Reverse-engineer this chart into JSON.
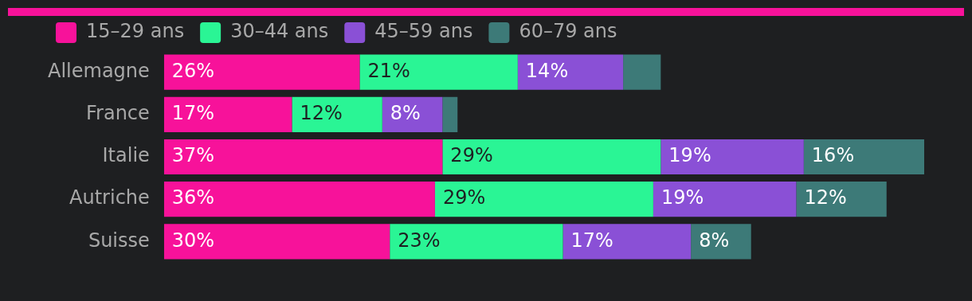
{
  "chart_data": {
    "type": "bar",
    "orientation": "horizontal",
    "stacked": true,
    "legend": "top left",
    "categories": [
      "Allemagne",
      "France",
      "Italie",
      "Autriche",
      "Suisse"
    ],
    "series": [
      {
        "name": "15–29 ans",
        "color": "#f7129a",
        "values": [
          26,
          17,
          37,
          36,
          30
        ],
        "value_labels": [
          "26%",
          "17%",
          "37%",
          "36%",
          "30%"
        ]
      },
      {
        "name": "30–44 ans",
        "color": "#2af595",
        "values": [
          21,
          12,
          29,
          29,
          23
        ],
        "value_labels": [
          "21%",
          "12%",
          "29%",
          "29%",
          "23%"
        ]
      },
      {
        "name": "45–59 ans",
        "color": "#8a50d6",
        "values": [
          14,
          8,
          19,
          19,
          17
        ],
        "value_labels": [
          "14%",
          "8%",
          "19%",
          "19%",
          "17%"
        ]
      },
      {
        "name": "60–79 ans",
        "color": "#3d7a78",
        "values": [
          5,
          2,
          16,
          12,
          8
        ],
        "value_labels": [
          null,
          null,
          "16%",
          "12%",
          "8%"
        ]
      }
    ]
  }
}
